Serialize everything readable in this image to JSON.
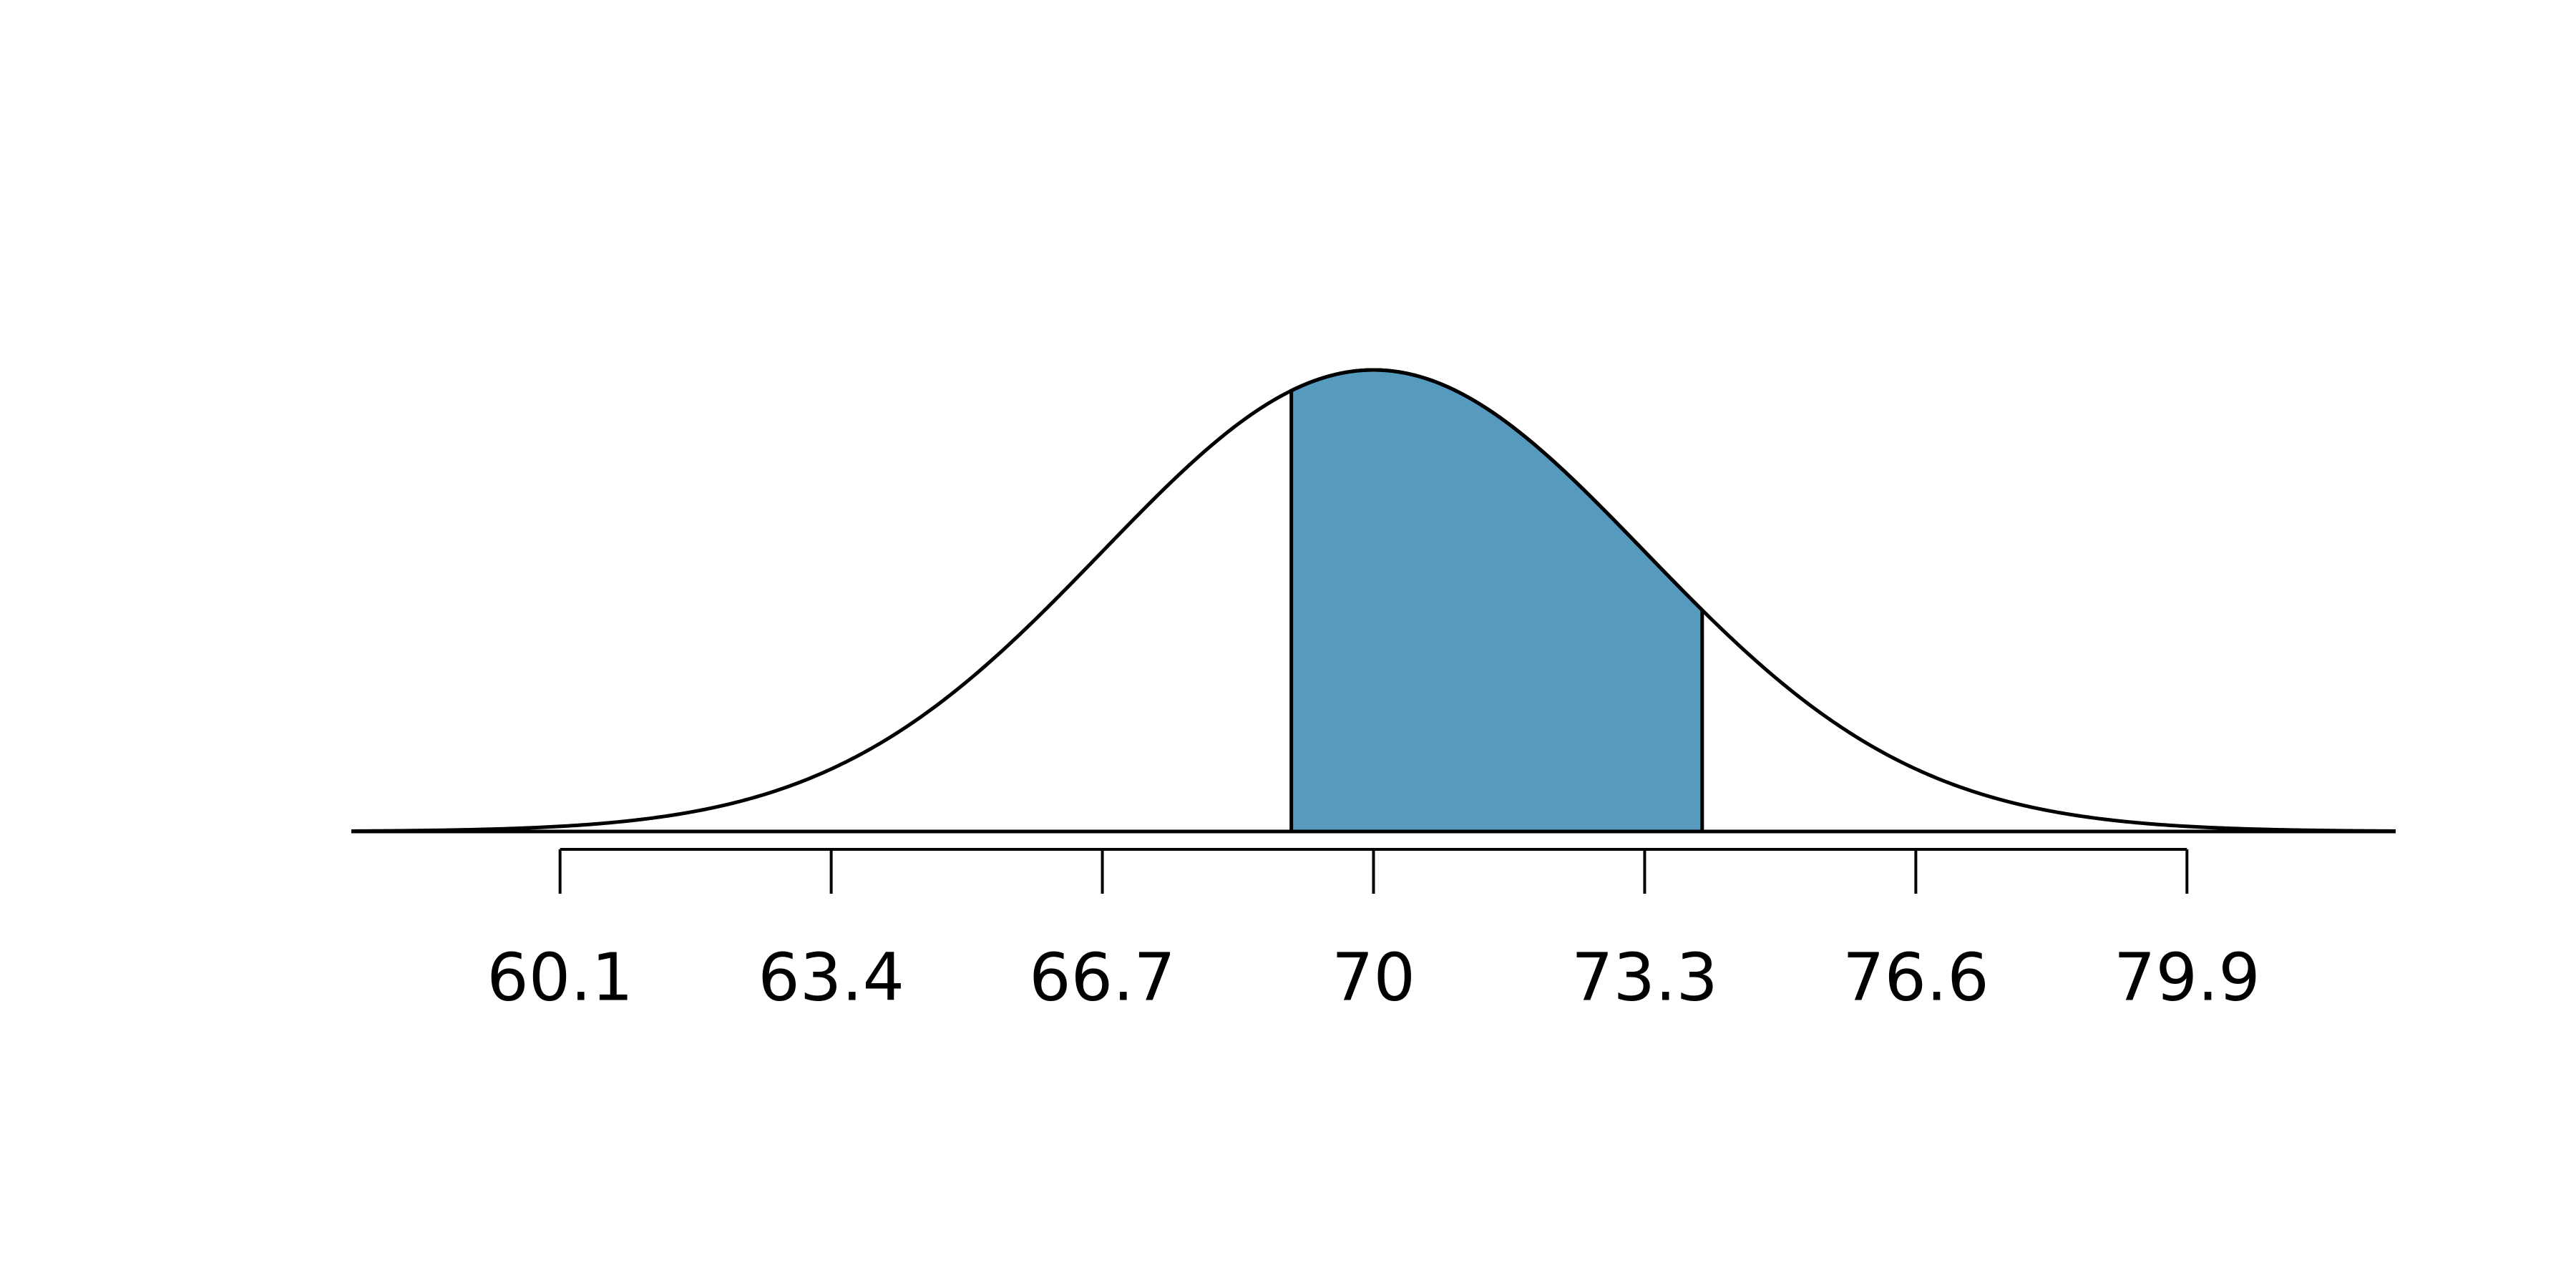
{
  "chart_data": {
    "type": "normal",
    "mean": 70,
    "sd": 3.3,
    "shade": [
      69,
      74
    ],
    "color": "#569bbd",
    "xlim": [
      57.56,
      82.44
    ],
    "xticks": [
      60.1,
      63.4,
      66.7,
      70,
      73.3,
      76.6,
      79.9
    ]
  }
}
